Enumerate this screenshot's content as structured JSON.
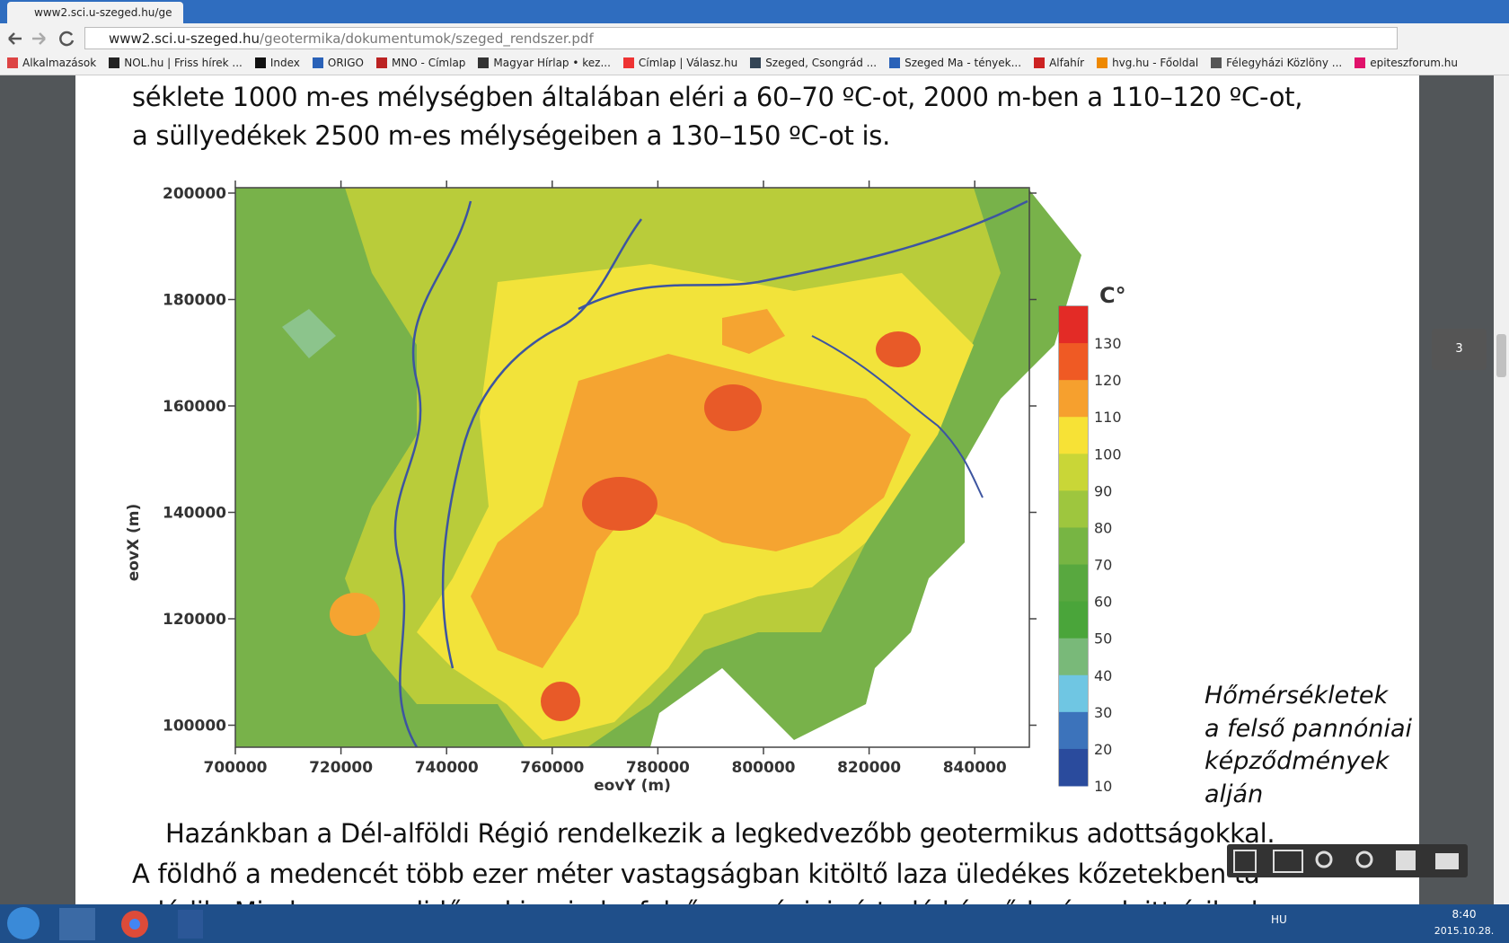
{
  "browser": {
    "tab_title": "www2.sci.u-szeged.hu/ge",
    "url_host": "www2.sci.u-szeged.hu",
    "url_path": "/geotermika/dokumentumok/szeged_rendszer.pdf",
    "bookmarks": [
      "Alkalmazások",
      "NOL.hu | Friss hírek ...",
      "Index",
      "ORIGO",
      "MNO - Címlap",
      "Magyar Hírlap • kez...",
      "Címlap | Válasz.hu",
      "Szeged, Csongrád ...",
      "Szeged Ma - tények...",
      "Alfahír",
      "hvg.hu - Főoldal",
      "Félegyházi Közlöny ...",
      "epiteszforum.hu"
    ]
  },
  "document": {
    "top_lines": [
      "séklete 1000 m-es mélységben általában eléri a 60–70 ºC-ot, 2000 m-ben a 110–120 ºC-ot,",
      "a süllyedékek 2500 m-es mélységeiben a 130–150 ºC-ot is."
    ],
    "figure": {
      "y_axis_label": "eovX (m)",
      "x_axis_label": "eovY (m)",
      "y_tick_labels": [
        "200000",
        "180000",
        "160000",
        "140000",
        "120000",
        "100000"
      ],
      "x_tick_labels": [
        "700000",
        "720000",
        "740000",
        "760000",
        "780000",
        "800000",
        "820000",
        "840000"
      ],
      "colorbar_unit": "C°",
      "colorbar_labels": [
        "130",
        "120",
        "110",
        "100",
        "90",
        "80",
        "70",
        "60",
        "50",
        "40",
        "30",
        "20",
        "10"
      ],
      "caption": [
        "Hőmérsékletek",
        "a felső pannóniai",
        "képződmények",
        "alján"
      ]
    },
    "bottom_lines": [
      "Hazánkban a Dél-alföldi Régió rendelkezik a legkedvezőbb geotermikus adottságokkal.",
      "A földhő a medencét több ezer méter vastagságban kitöltő laza üledékes kőzetekben ta",
      "rolódik. Mind a negyedidőszaki, mind a felső pannóniai víztadó képződmények itt érik el"
    ]
  },
  "viewer": {
    "page_number": "3"
  },
  "taskbar": {
    "language": "HU",
    "time": "8:40",
    "date": "2015.10.28."
  }
}
